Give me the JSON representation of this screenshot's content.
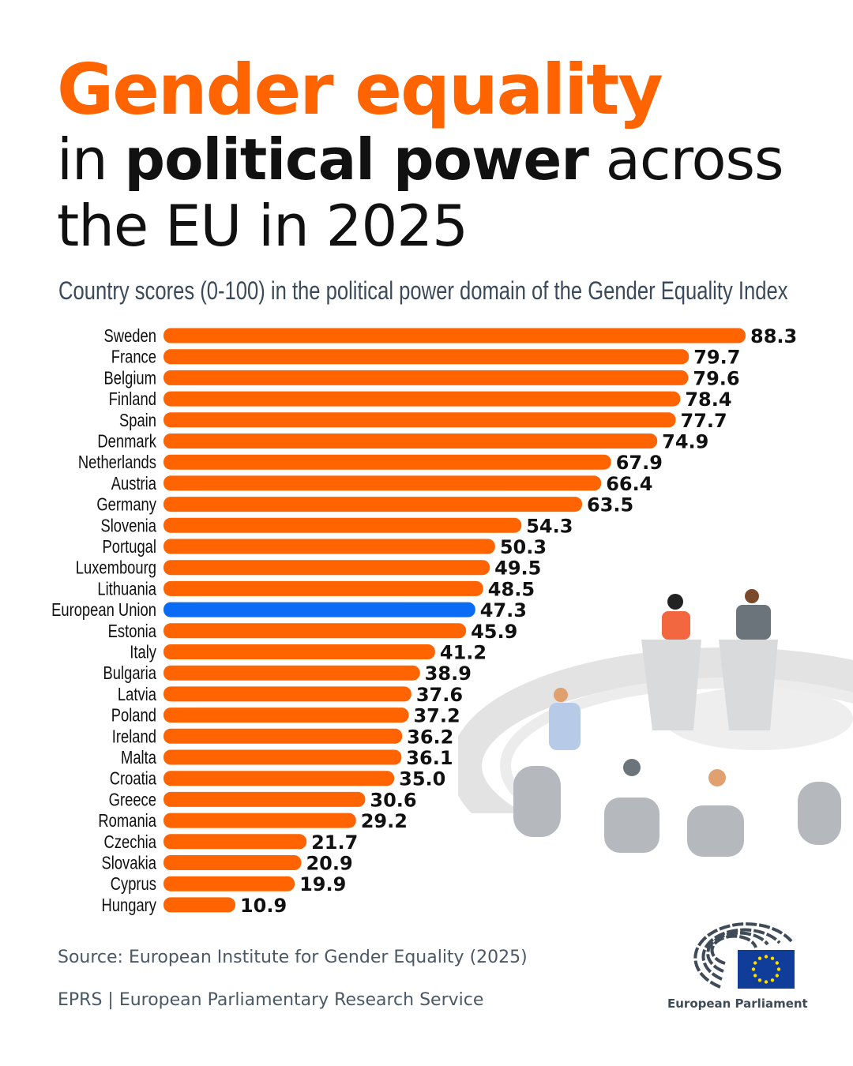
{
  "title": {
    "line1": "Gender equality",
    "line2_pre": "in ",
    "line2_bold": "political power",
    "line2_post": " across",
    "line3": "the EU in 2025"
  },
  "subtitle": "Country scores (0-100) in the political power domain of the Gender Equality Index",
  "colors": {
    "accent": "#ff6400",
    "eu_highlight": "#0a6cf5",
    "text": "#111111",
    "eu_flag": "#0f3d99",
    "flag_stars": "#ffdd00"
  },
  "chart_data": {
    "type": "bar",
    "orientation": "horizontal",
    "categories": [
      "Sweden",
      "France",
      "Belgium",
      "Finland",
      "Spain",
      "Denmark",
      "Netherlands",
      "Austria",
      "Germany",
      "Slovenia",
      "Portugal",
      "Luxembourg",
      "Lithuania",
      "European Union",
      "Estonia",
      "Italy",
      "Bulgaria",
      "Latvia",
      "Poland",
      "Ireland",
      "Malta",
      "Croatia",
      "Greece",
      "Romania",
      "Czechia",
      "Slovakia",
      "Cyprus",
      "Hungary"
    ],
    "values": [
      88.3,
      79.7,
      79.6,
      78.4,
      77.7,
      74.9,
      67.9,
      66.4,
      63.5,
      54.3,
      50.3,
      49.5,
      48.5,
      47.3,
      45.9,
      41.2,
      38.9,
      37.6,
      37.2,
      36.2,
      36.1,
      35.0,
      30.6,
      29.2,
      21.7,
      20.9,
      19.9,
      10.9
    ],
    "value_labels": [
      "88.3",
      "79.7",
      "79.6",
      "78.4",
      "77.7",
      "74.9",
      "67.9",
      "66.4",
      "63.5",
      "54.3",
      "50.3",
      "49.5",
      "48.5",
      "47.3",
      "45.9",
      "41.2",
      "38.9",
      "37.6",
      "37.2",
      "36.2",
      "36.1",
      "35.0",
      "30.6",
      "29.2",
      "21.7",
      "20.9",
      "19.9",
      "10.9"
    ],
    "highlight": "European Union",
    "xlim": [
      0,
      100
    ],
    "grid": false
  },
  "footer": {
    "source": "Source: European Institute for Gender Equality (2025)",
    "eprs": "EPRS | European Parliamentary Research Service",
    "logo_text": "European Parliament"
  }
}
